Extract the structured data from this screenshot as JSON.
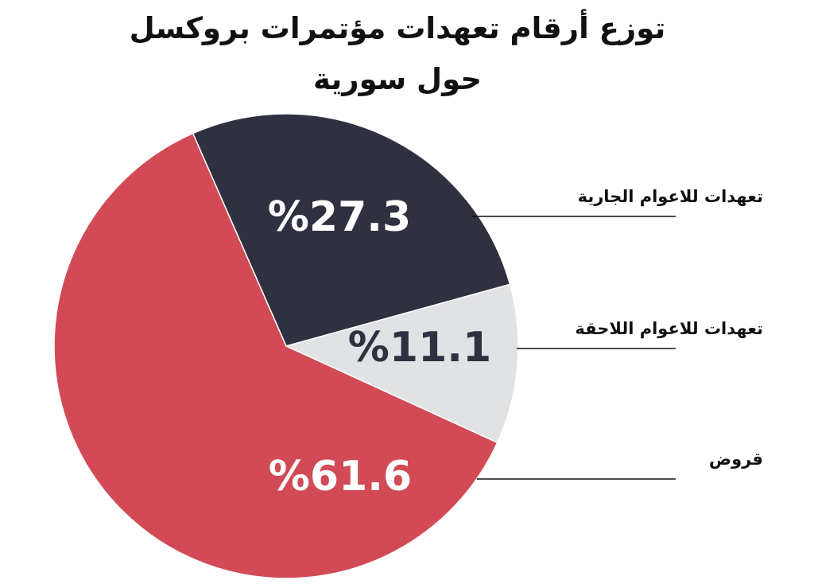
{
  "chart_data": {
    "type": "pie",
    "title": "توزع أرقام تعهدات مؤتمرات بروكسل حول سورية",
    "categories": [
      "تعهدات للاعوام الجارية",
      "تعهدات للاعوام اللاحقة",
      "قروض"
    ],
    "values": [
      27.3,
      11.1,
      61.6
    ],
    "value_labels": [
      "%27.3",
      "%11.1",
      "%61.6"
    ],
    "colors": [
      "#2f3140",
      "#e1e2e4",
      "#d24a55"
    ],
    "label_colors": [
      "#ffffff",
      "#2f3140",
      "#ffffff"
    ]
  }
}
